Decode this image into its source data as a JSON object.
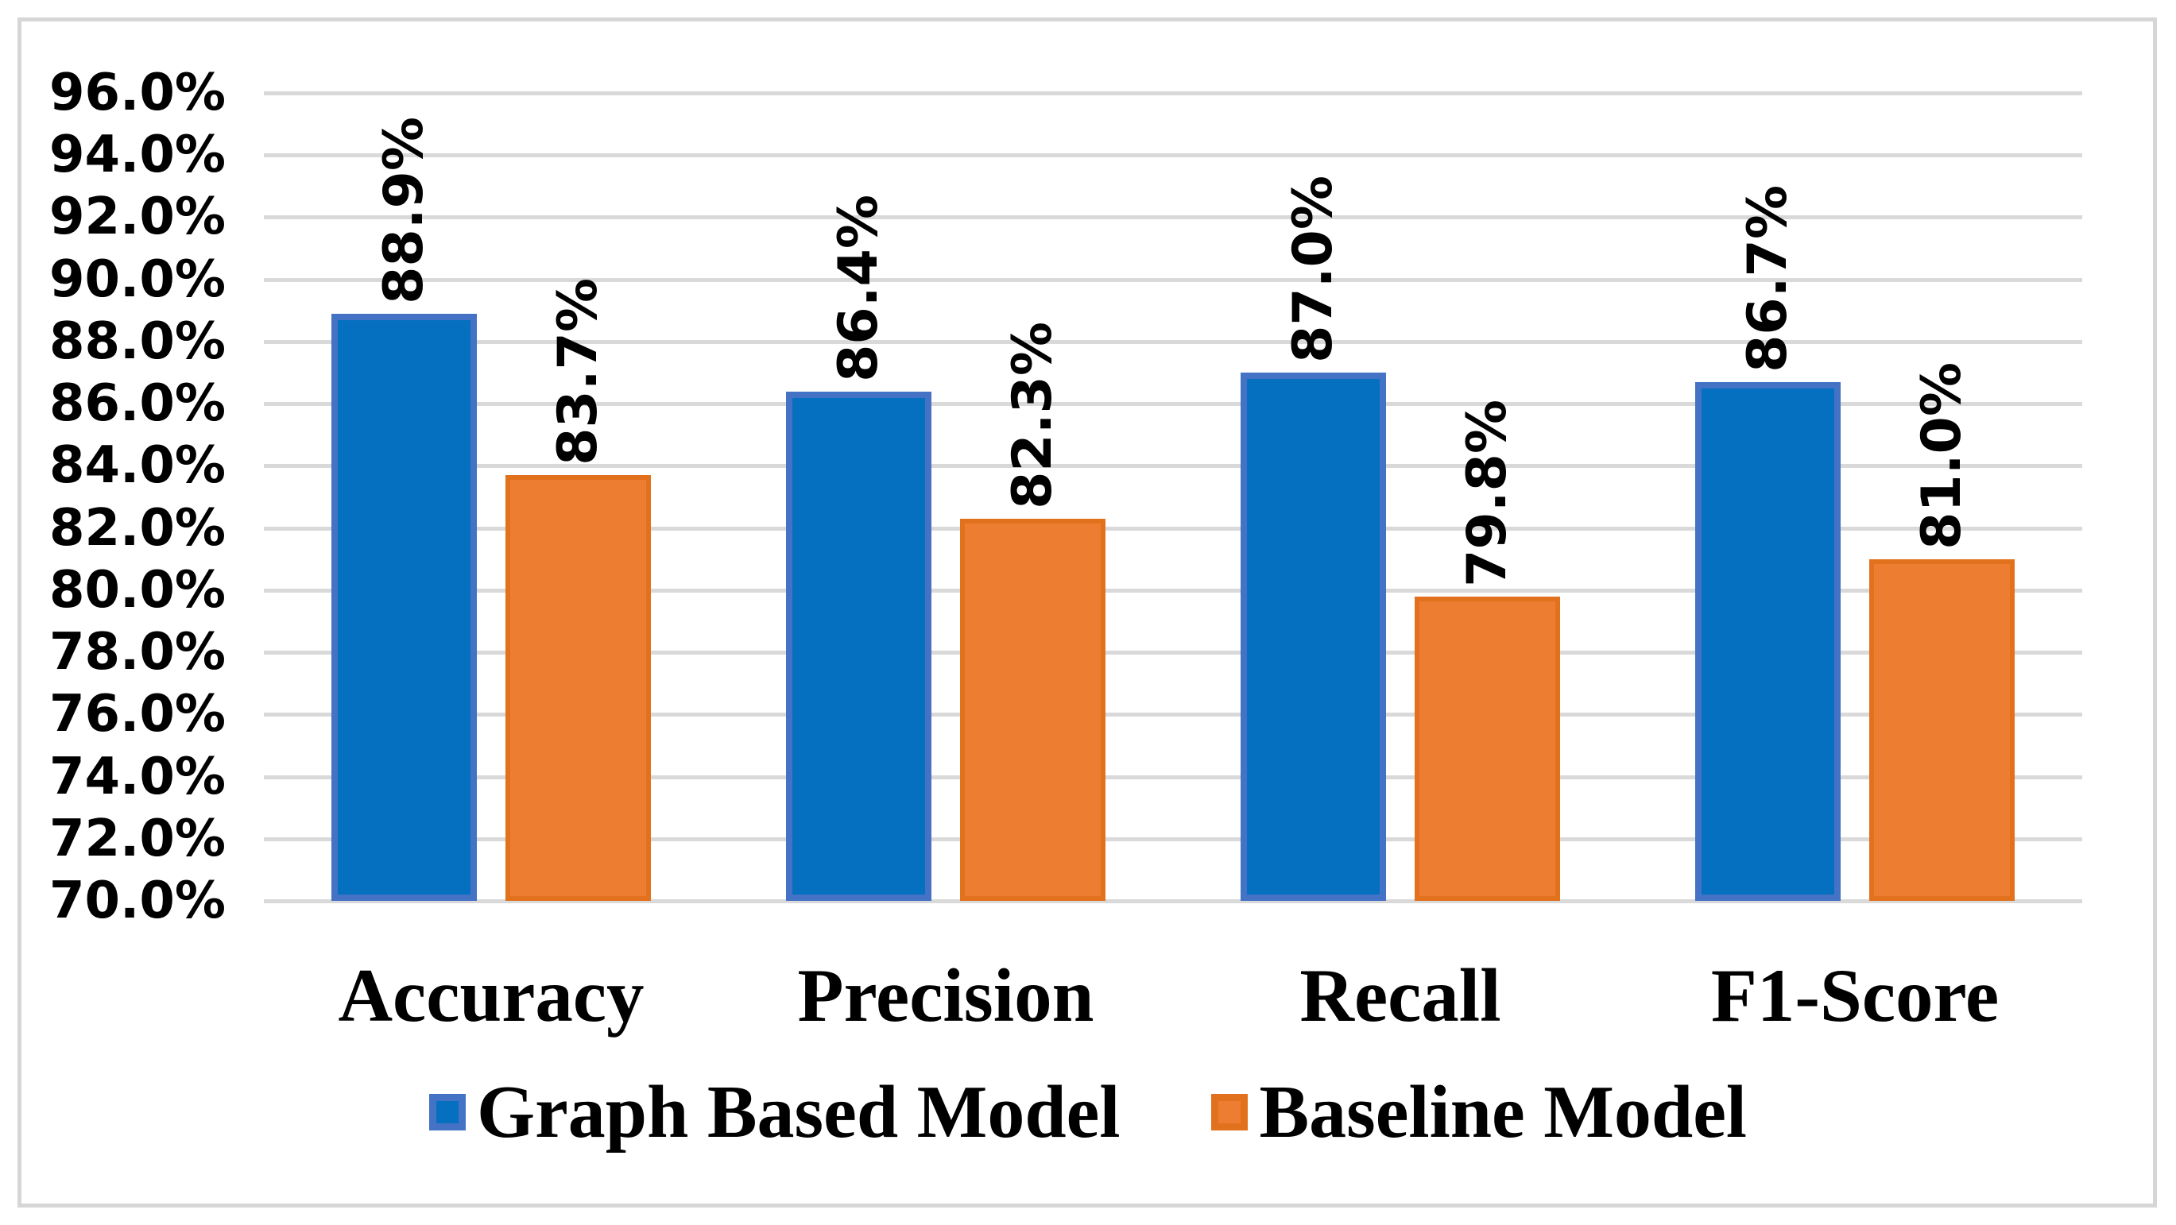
{
  "chart_data": {
    "type": "bar",
    "title": "",
    "categories": [
      "Accuracy",
      "Precision",
      "Recall",
      "F1-Score"
    ],
    "series": [
      {
        "name": "Graph Based Model",
        "color": "#0670c0",
        "border_color": "#4472c4",
        "values": [
          88.9,
          86.4,
          87.0,
          86.7
        ],
        "labels": [
          "88.9%",
          "86.4%",
          "87.0%",
          "86.7%"
        ]
      },
      {
        "name": "Baseline Model",
        "color": "#ed7d31",
        "border_color": "#e2711e",
        "values": [
          83.7,
          82.3,
          79.8,
          81.0
        ],
        "labels": [
          "83.7%",
          "82.3%",
          "79.8%",
          "81.0%"
        ]
      }
    ],
    "y_axis": {
      "min": 70,
      "max": 96,
      "step": 2,
      "tick_labels": [
        "96.0%",
        "94.0%",
        "92.0%",
        "90.0%",
        "88.0%",
        "86.0%",
        "84.0%",
        "82.0%",
        "80.0%",
        "78.0%",
        "76.0%",
        "74.0%",
        "72.0%",
        "70.0%"
      ]
    },
    "xlabel": "",
    "ylabel": "",
    "grid": true,
    "gridline_color": "#d9d9d9",
    "frame_color": "#d6d6d6",
    "data_label_rotation": -90,
    "legend_position": "bottom"
  }
}
